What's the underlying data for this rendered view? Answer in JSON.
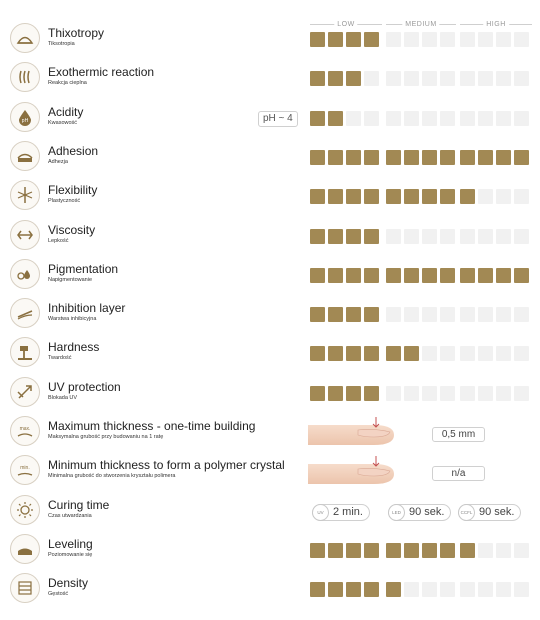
{
  "scale": {
    "low": "LOW",
    "medium": "MEDIUM",
    "high": "HIGH"
  },
  "rows": [
    {
      "icon": "thixotropy-icon",
      "title": "Thixotropy",
      "subtitle": "Tiksotropia",
      "level": 4
    },
    {
      "icon": "exothermic-icon",
      "title": "Exothermic reaction",
      "subtitle": "Reakcja cieplna",
      "level": 3
    },
    {
      "icon": "acidity-icon",
      "title": "Acidity",
      "subtitle": "Kwasowość",
      "level": 2,
      "ph": "pH ~ 4"
    },
    {
      "icon": "adhesion-icon",
      "title": "Adhesion",
      "subtitle": "Adhezja",
      "level": 12
    },
    {
      "icon": "flexibility-icon",
      "title": "Flexibility",
      "subtitle": "Plastyczność",
      "level": 9
    },
    {
      "icon": "viscosity-icon",
      "title": "Viscosity",
      "subtitle": "Lepkość",
      "level": 4
    },
    {
      "icon": "pigmentation-icon",
      "title": "Pigmentation",
      "subtitle": "Napigmentowanie",
      "level": 12
    },
    {
      "icon": "inhibition-layer-icon",
      "title": "Inhibition layer",
      "subtitle": "Warstwa inhibicyjna",
      "level": 4
    },
    {
      "icon": "hardness-icon",
      "title": "Hardness",
      "subtitle": "Twardość",
      "level": 6
    },
    {
      "icon": "uv-protection-icon",
      "title": "UV protection",
      "subtitle": "Blokada UV",
      "level": 4
    },
    {
      "icon": "max-thickness-icon",
      "title": "Maximum thickness - one-time building",
      "subtitle": "Maksymalna grubość przy budowaniu na 1 ratę",
      "value": "0,5 mm"
    },
    {
      "icon": "min-thickness-icon",
      "title": "Minimum thickness to form a polymer crystal",
      "subtitle": "Minimalna grubość do stworzenia kryształu polimera",
      "value": "n/a"
    },
    {
      "icon": "curing-time-icon",
      "title": "Curing time",
      "subtitle": "Czas utwardzania",
      "curing": [
        {
          "lamp": "UV",
          "time": "2 min."
        },
        {
          "lamp": "LED",
          "time": "90 sek."
        },
        {
          "lamp": "CCFL",
          "time": "90 sek."
        }
      ]
    },
    {
      "icon": "leveling-icon",
      "title": "Leveling",
      "subtitle": "Poziomowanie się",
      "level": 9
    },
    {
      "icon": "density-icon",
      "title": "Density",
      "subtitle": "Gęstość",
      "level": 5
    }
  ],
  "max_level": 12,
  "colors": {
    "active": "#a28954",
    "inactive": "#f1f1f1",
    "icon": "#8a7040"
  }
}
